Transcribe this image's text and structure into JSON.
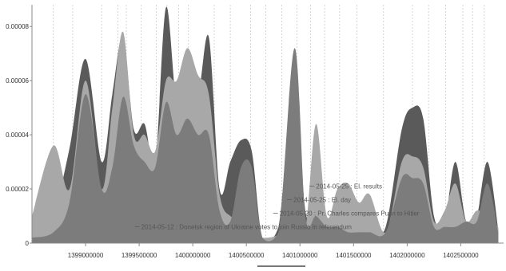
{
  "chart_data": {
    "type": "area",
    "stacked": false,
    "grid": "vertical",
    "xlim": [
      1398500000,
      1402900000
    ],
    "ylim": [
      0,
      8.8e-05
    ],
    "y_ticks": [
      0,
      2e-05,
      4e-05,
      6e-05,
      8e-05
    ],
    "y_tick_labels": [
      "0",
      "0.00002",
      "0.00004",
      "0.00006",
      "0.00008"
    ],
    "x_ticks": [
      1399000000,
      1399500000,
      1400000000,
      1400500000,
      1401000000,
      1401500000,
      1402000000,
      1402500000
    ],
    "x_tick_labels": [
      "1399000000",
      "1399500000",
      "1400000000",
      "1400500000",
      "1401000000",
      "1401500000",
      "1402000000",
      "1402500000"
    ],
    "x": [
      1398500000,
      1398700000,
      1398850000,
      1399000000,
      1399150000,
      1399250000,
      1399350000,
      1399450000,
      1399550000,
      1399650000,
      1399750000,
      1399850000,
      1399950000,
      1400050000,
      1400150000,
      1400250000,
      1400350000,
      1400450000,
      1400550000,
      1400650000,
      1400800000,
      1400950000,
      1401050000,
      1401150000,
      1401250000,
      1401350000,
      1401450000,
      1401550000,
      1401650000,
      1401800000,
      1401950000,
      1402050000,
      1402150000,
      1402250000,
      1402350000,
      1402450000,
      1402550000,
      1402650000,
      1402750000,
      1402850000
    ],
    "series": [
      {
        "color": "#5a5a5a",
        "values": [
          5e-06,
          1.2e-05,
          3.5e-05,
          6.8e-05,
          3e-05,
          5.5e-05,
          7.6e-05,
          4.2e-05,
          4.4e-05,
          3e-05,
          8.7e-05,
          5.2e-05,
          6.2e-05,
          5.5e-05,
          7.6e-05,
          2e-05,
          3e-05,
          3.8e-05,
          3.4e-05,
          2e-06,
          6e-06,
          6.2e-05,
          1.2e-05,
          1.2e-05,
          8e-06,
          4e-06,
          3e-06,
          3e-06,
          3e-06,
          6e-06,
          4.2e-05,
          5e-05,
          4.6e-05,
          1e-05,
          8e-06,
          3e-05,
          8e-06,
          1e-05,
          3e-05,
          5e-06
        ]
      },
      {
        "color": "#a8a8a8",
        "values": [
          1e-05,
          3.6e-05,
          2e-05,
          6e-05,
          2e-05,
          5e-05,
          7.8e-05,
          4e-05,
          4e-05,
          3.4e-05,
          6e-05,
          6e-05,
          7.2e-05,
          6.2e-05,
          5.5e-05,
          1.8e-05,
          1e-05,
          1e-05,
          4e-06,
          2e-06,
          3e-06,
          8e-06,
          5e-06,
          4.4e-05,
          1e-05,
          2e-05,
          2.2e-05,
          1.5e-05,
          1.8e-05,
          4e-06,
          3e-05,
          3.2e-05,
          2.8e-05,
          8e-06,
          1.2e-05,
          2.2e-05,
          8e-06,
          1.2e-05,
          1e-05,
          6e-06
        ]
      },
      {
        "color": "#7c7c7c",
        "values": [
          2e-06,
          4e-06,
          1.5e-05,
          5.5e-05,
          2e-05,
          2.8e-05,
          5.4e-05,
          3.6e-05,
          3e-05,
          2.8e-05,
          5.2e-05,
          4e-05,
          4.6e-05,
          4e-05,
          4e-05,
          1.2e-05,
          8e-06,
          2.8e-05,
          2.8e-05,
          2e-06,
          4e-06,
          7.2e-05,
          1e-05,
          1e-05,
          6e-06,
          6e-06,
          4e-06,
          4e-06,
          4e-06,
          4e-06,
          2.4e-05,
          2.4e-05,
          2.2e-05,
          6e-06,
          6e-06,
          6e-06,
          8e-06,
          8e-06,
          2.2e-05,
          4e-06
        ]
      }
    ],
    "event_lines": [
      1398700000,
      1398880000,
      1399150000,
      1399300000,
      1399380000,
      1399520000,
      1399660000,
      1399760000,
      1399870000,
      1399960000,
      1400200000,
      1400350000,
      1400540000,
      1400680000,
      1400830000,
      1400970000,
      1401100000,
      1401230000,
      1401370000,
      1401530000,
      1401780000,
      1402050000,
      1402200000,
      1402360000,
      1402520000,
      1402610000,
      1402720000
    ],
    "annotations": [
      {
        "text": "2014-05-25 : El. results",
        "x": 1401090000,
        "y": 2.05e-05
      },
      {
        "text": "2014-05-25 : El. day",
        "x": 1400880000,
        "y": 1.55e-05
      },
      {
        "text": "2014-05-20 : Pr. Charles compares Putin to Hitler",
        "x": 1400750000,
        "y": 1.05e-05
      },
      {
        "text": "2014-05-12 : Donetsk region of Ukraine votes to join Russia in referendum",
        "x": 1399460000,
        "y": 5.5e-06
      }
    ]
  }
}
